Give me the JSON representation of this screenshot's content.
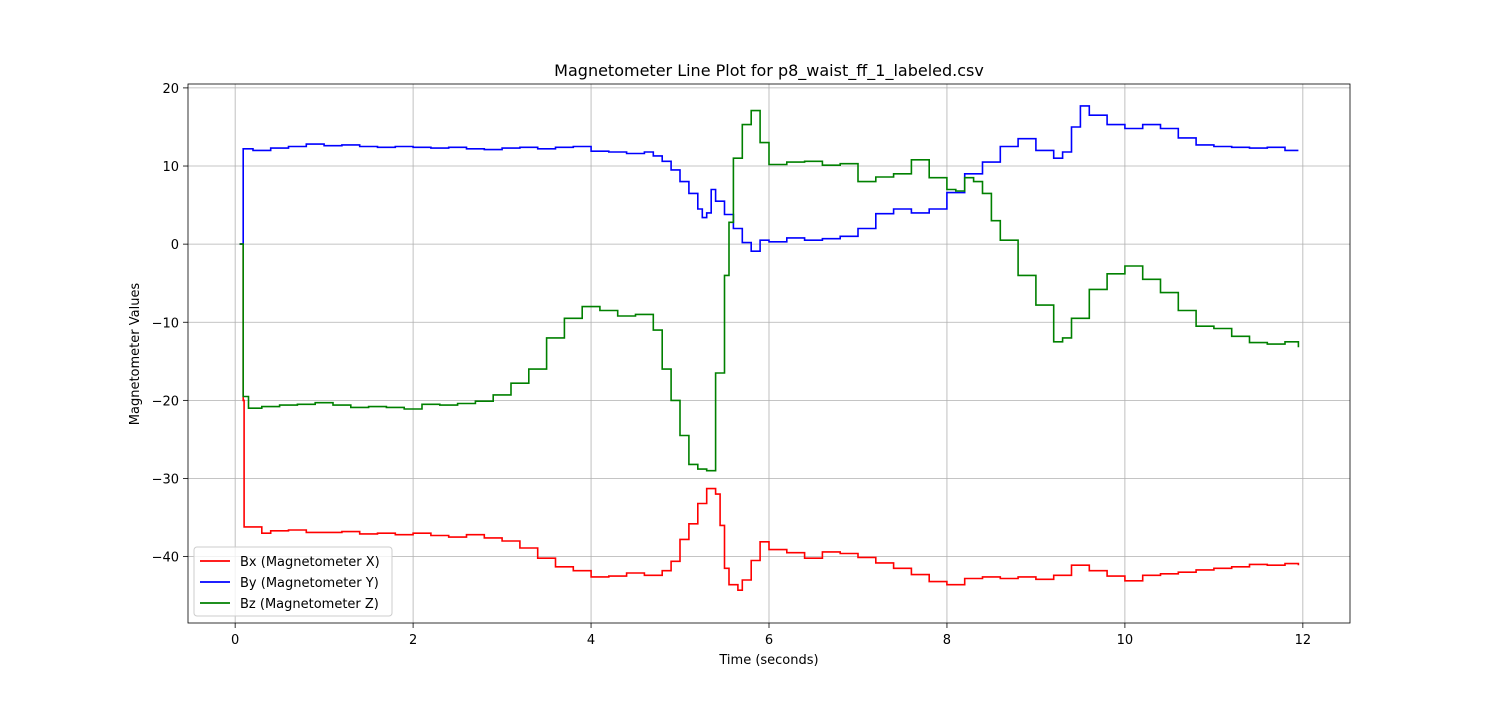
{
  "chart_data": {
    "type": "line",
    "title": "Magnetometer Line Plot for p8_waist_ff_1_labeled.csv",
    "xlabel": "Time (seconds)",
    "ylabel": "Magnetometer Values",
    "xlim": [
      -0.53,
      12.53
    ],
    "ylim": [
      -48.5,
      20.5
    ],
    "xticks": [
      0,
      2,
      4,
      6,
      8,
      10,
      12
    ],
    "xtick_labels": [
      "0",
      "2",
      "4",
      "6",
      "8",
      "10",
      "12"
    ],
    "yticks": [
      20,
      10,
      0,
      -10,
      -20,
      -30,
      -40
    ],
    "ytick_labels": [
      "20",
      "10",
      "0",
      "−10",
      "−20",
      "−30",
      "−40"
    ],
    "grid": true,
    "legend_position": "lower-left",
    "step": true,
    "series": [
      {
        "name": "Bx (Magnetometer X)",
        "color": "#ff0000",
        "points": [
          [
            0.05,
            0
          ],
          [
            0.09,
            -20
          ],
          [
            0.1,
            -36.2
          ],
          [
            0.3,
            -37
          ],
          [
            0.4,
            -36.7
          ],
          [
            0.6,
            -36.6
          ],
          [
            0.8,
            -36.9
          ],
          [
            1.0,
            -36.9
          ],
          [
            1.2,
            -36.8
          ],
          [
            1.4,
            -37.1
          ],
          [
            1.6,
            -37.0
          ],
          [
            1.8,
            -37.2
          ],
          [
            2.0,
            -37.0
          ],
          [
            2.2,
            -37.3
          ],
          [
            2.4,
            -37.5
          ],
          [
            2.6,
            -37.2
          ],
          [
            2.8,
            -37.6
          ],
          [
            3.0,
            -38.0
          ],
          [
            3.2,
            -38.9
          ],
          [
            3.4,
            -40.2
          ],
          [
            3.6,
            -41.3
          ],
          [
            3.8,
            -41.8
          ],
          [
            4.0,
            -42.6
          ],
          [
            4.2,
            -42.5
          ],
          [
            4.4,
            -42.1
          ],
          [
            4.6,
            -42.4
          ],
          [
            4.8,
            -41.8
          ],
          [
            4.9,
            -40.6
          ],
          [
            5.0,
            -37.8
          ],
          [
            5.1,
            -35.8
          ],
          [
            5.2,
            -33.2
          ],
          [
            5.3,
            -31.3
          ],
          [
            5.4,
            -32.0
          ],
          [
            5.45,
            -36.0
          ],
          [
            5.5,
            -41.5
          ],
          [
            5.55,
            -43.6
          ],
          [
            5.65,
            -44.3
          ],
          [
            5.7,
            -43.0
          ],
          [
            5.8,
            -40.5
          ],
          [
            5.9,
            -38.1
          ],
          [
            6.0,
            -39.1
          ],
          [
            6.2,
            -39.5
          ],
          [
            6.4,
            -40.2
          ],
          [
            6.6,
            -39.4
          ],
          [
            6.8,
            -39.6
          ],
          [
            7.0,
            -40.1
          ],
          [
            7.2,
            -40.8
          ],
          [
            7.4,
            -41.5
          ],
          [
            7.6,
            -42.3
          ],
          [
            7.8,
            -43.2
          ],
          [
            8.0,
            -43.6
          ],
          [
            8.2,
            -42.8
          ],
          [
            8.4,
            -42.6
          ],
          [
            8.6,
            -42.8
          ],
          [
            8.8,
            -42.6
          ],
          [
            9.0,
            -42.9
          ],
          [
            9.2,
            -42.4
          ],
          [
            9.4,
            -41.1
          ],
          [
            9.6,
            -41.8
          ],
          [
            9.8,
            -42.5
          ],
          [
            10.0,
            -43.1
          ],
          [
            10.2,
            -42.4
          ],
          [
            10.4,
            -42.2
          ],
          [
            10.6,
            -42.0
          ],
          [
            10.8,
            -41.7
          ],
          [
            11.0,
            -41.5
          ],
          [
            11.2,
            -41.3
          ],
          [
            11.4,
            -41.0
          ],
          [
            11.6,
            -41.1
          ],
          [
            11.8,
            -40.9
          ],
          [
            11.95,
            -41.1
          ]
        ]
      },
      {
        "name": "By (Magnetometer Y)",
        "color": "#0000ff",
        "points": [
          [
            0.05,
            0
          ],
          [
            0.09,
            12.2
          ],
          [
            0.2,
            12.0
          ],
          [
            0.4,
            12.3
          ],
          [
            0.6,
            12.5
          ],
          [
            0.8,
            12.8
          ],
          [
            1.0,
            12.6
          ],
          [
            1.2,
            12.7
          ],
          [
            1.4,
            12.5
          ],
          [
            1.6,
            12.4
          ],
          [
            1.8,
            12.5
          ],
          [
            2.0,
            12.4
          ],
          [
            2.2,
            12.3
          ],
          [
            2.4,
            12.4
          ],
          [
            2.6,
            12.2
          ],
          [
            2.8,
            12.1
          ],
          [
            3.0,
            12.3
          ],
          [
            3.2,
            12.4
          ],
          [
            3.4,
            12.2
          ],
          [
            3.6,
            12.4
          ],
          [
            3.8,
            12.5
          ],
          [
            4.0,
            11.9
          ],
          [
            4.2,
            11.8
          ],
          [
            4.4,
            11.6
          ],
          [
            4.6,
            11.8
          ],
          [
            4.7,
            11.3
          ],
          [
            4.8,
            10.6
          ],
          [
            4.9,
            9.5
          ],
          [
            5.0,
            8.0
          ],
          [
            5.1,
            6.5
          ],
          [
            5.2,
            4.5
          ],
          [
            5.25,
            3.4
          ],
          [
            5.3,
            4.0
          ],
          [
            5.35,
            7.0
          ],
          [
            5.4,
            5.5
          ],
          [
            5.5,
            3.8
          ],
          [
            5.6,
            2.0
          ],
          [
            5.7,
            0.2
          ],
          [
            5.8,
            -0.9
          ],
          [
            5.9,
            0.5
          ],
          [
            6.0,
            0.3
          ],
          [
            6.2,
            0.8
          ],
          [
            6.4,
            0.5
          ],
          [
            6.6,
            0.7
          ],
          [
            6.8,
            1.0
          ],
          [
            7.0,
            2.0
          ],
          [
            7.2,
            3.9
          ],
          [
            7.4,
            4.5
          ],
          [
            7.6,
            4.0
          ],
          [
            7.8,
            4.5
          ],
          [
            8.0,
            6.6
          ],
          [
            8.2,
            9.0
          ],
          [
            8.4,
            10.5
          ],
          [
            8.6,
            12.5
          ],
          [
            8.8,
            13.5
          ],
          [
            9.0,
            12.0
          ],
          [
            9.2,
            11.0
          ],
          [
            9.3,
            11.8
          ],
          [
            9.4,
            15.0
          ],
          [
            9.5,
            17.7
          ],
          [
            9.6,
            16.5
          ],
          [
            9.8,
            15.3
          ],
          [
            10.0,
            14.8
          ],
          [
            10.2,
            15.3
          ],
          [
            10.4,
            14.8
          ],
          [
            10.6,
            13.6
          ],
          [
            10.8,
            12.7
          ],
          [
            11.0,
            12.5
          ],
          [
            11.2,
            12.4
          ],
          [
            11.4,
            12.3
          ],
          [
            11.6,
            12.4
          ],
          [
            11.8,
            12.0
          ],
          [
            11.95,
            12.0
          ]
        ]
      },
      {
        "name": "Bz (Magnetometer Z)",
        "color": "#008000",
        "points": [
          [
            0.05,
            0
          ],
          [
            0.09,
            -19.5
          ],
          [
            0.15,
            -21.0
          ],
          [
            0.3,
            -20.8
          ],
          [
            0.5,
            -20.6
          ],
          [
            0.7,
            -20.5
          ],
          [
            0.9,
            -20.3
          ],
          [
            1.1,
            -20.6
          ],
          [
            1.3,
            -20.9
          ],
          [
            1.5,
            -20.8
          ],
          [
            1.7,
            -20.9
          ],
          [
            1.9,
            -21.1
          ],
          [
            2.1,
            -20.5
          ],
          [
            2.3,
            -20.6
          ],
          [
            2.5,
            -20.4
          ],
          [
            2.7,
            -20.1
          ],
          [
            2.9,
            -19.3
          ],
          [
            3.1,
            -17.8
          ],
          [
            3.3,
            -16.0
          ],
          [
            3.5,
            -12.0
          ],
          [
            3.7,
            -9.5
          ],
          [
            3.9,
            -8.0
          ],
          [
            4.1,
            -8.5
          ],
          [
            4.3,
            -9.2
          ],
          [
            4.5,
            -9.0
          ],
          [
            4.7,
            -11.0
          ],
          [
            4.8,
            -16.0
          ],
          [
            4.9,
            -20.0
          ],
          [
            5.0,
            -24.5
          ],
          [
            5.1,
            -28.2
          ],
          [
            5.2,
            -28.8
          ],
          [
            5.3,
            -29.0
          ],
          [
            5.4,
            -16.5
          ],
          [
            5.5,
            -4.0
          ],
          [
            5.55,
            2.8
          ],
          [
            5.6,
            11.0
          ],
          [
            5.7,
            15.3
          ],
          [
            5.8,
            17.1
          ],
          [
            5.9,
            13.0
          ],
          [
            6.0,
            10.2
          ],
          [
            6.2,
            10.5
          ],
          [
            6.4,
            10.6
          ],
          [
            6.6,
            10.1
          ],
          [
            6.8,
            10.3
          ],
          [
            7.0,
            8.0
          ],
          [
            7.2,
            8.6
          ],
          [
            7.4,
            9.0
          ],
          [
            7.6,
            10.8
          ],
          [
            7.8,
            8.5
          ],
          [
            8.0,
            7.0
          ],
          [
            8.1,
            6.8
          ],
          [
            8.2,
            8.5
          ],
          [
            8.3,
            8.0
          ],
          [
            8.4,
            6.5
          ],
          [
            8.5,
            3.0
          ],
          [
            8.6,
            0.5
          ],
          [
            8.8,
            -4.0
          ],
          [
            9.0,
            -7.8
          ],
          [
            9.2,
            -12.5
          ],
          [
            9.3,
            -12.0
          ],
          [
            9.4,
            -9.5
          ],
          [
            9.6,
            -5.8
          ],
          [
            9.8,
            -3.8
          ],
          [
            10.0,
            -2.8
          ],
          [
            10.2,
            -4.5
          ],
          [
            10.4,
            -6.2
          ],
          [
            10.6,
            -8.5
          ],
          [
            10.8,
            -10.5
          ],
          [
            11.0,
            -10.8
          ],
          [
            11.2,
            -11.8
          ],
          [
            11.4,
            -12.6
          ],
          [
            11.6,
            -12.8
          ],
          [
            11.8,
            -12.5
          ],
          [
            11.95,
            -13.2
          ]
        ]
      }
    ]
  }
}
